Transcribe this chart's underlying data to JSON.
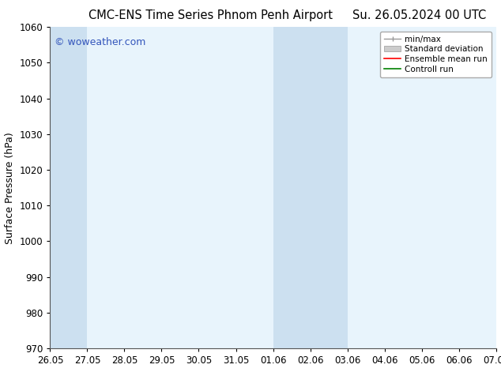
{
  "title_left": "CMC-ENS Time Series Phnom Penh Airport",
  "title_right": "Su. 26.05.2024 00 UTC",
  "ylabel": "Surface Pressure (hPa)",
  "ylim": [
    970,
    1060
  ],
  "yticks": [
    970,
    980,
    990,
    1000,
    1010,
    1020,
    1030,
    1040,
    1050,
    1060
  ],
  "xtick_labels": [
    "26.05",
    "27.05",
    "28.05",
    "29.05",
    "30.05",
    "31.05",
    "01.06",
    "02.06",
    "03.06",
    "04.06",
    "05.06",
    "06.06",
    "07.06"
  ],
  "xtick_positions": [
    0,
    1,
    2,
    3,
    4,
    5,
    6,
    7,
    8,
    9,
    10,
    11,
    12
  ],
  "shaded_regions": [
    {
      "x_start": 0,
      "x_end": 1,
      "color": "#cce0f0"
    },
    {
      "x_start": 6,
      "x_end": 7,
      "color": "#cce0f0"
    },
    {
      "x_start": 7,
      "x_end": 8,
      "color": "#cce0f0"
    }
  ],
  "watermark_text": "© woweather.com",
  "watermark_color": "#3355bb",
  "bg_color": "#ffffff",
  "plot_bg_color": "#e8f4fc",
  "legend_items": [
    {
      "label": "min/max",
      "color": "#999999"
    },
    {
      "label": "Standard deviation",
      "color": "#cccccc"
    },
    {
      "label": "Ensemble mean run",
      "color": "#ff0000"
    },
    {
      "label": "Controll run",
      "color": "#008000"
    }
  ],
  "title_fontsize": 10.5,
  "tick_fontsize": 8.5,
  "ylabel_fontsize": 9,
  "legend_fontsize": 7.5,
  "watermark_fontsize": 9
}
